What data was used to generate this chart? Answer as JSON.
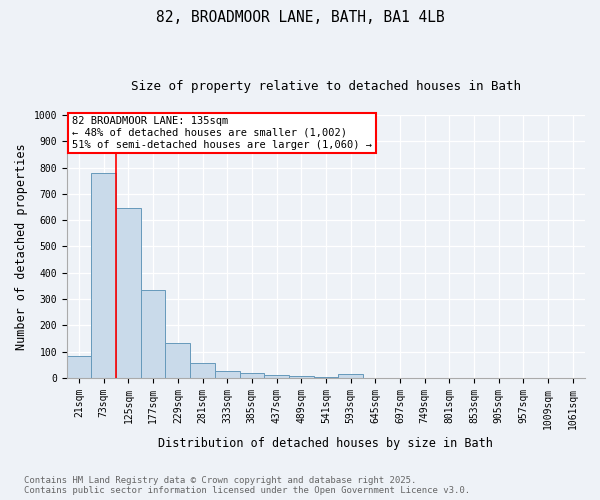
{
  "title1": "82, BROADMOOR LANE, BATH, BA1 4LB",
  "title2": "Size of property relative to detached houses in Bath",
  "xlabel": "Distribution of detached houses by size in Bath",
  "ylabel": "Number of detached properties",
  "categories": [
    "21sqm",
    "73sqm",
    "125sqm",
    "177sqm",
    "229sqm",
    "281sqm",
    "333sqm",
    "385sqm",
    "437sqm",
    "489sqm",
    "541sqm",
    "593sqm",
    "645sqm",
    "697sqm",
    "749sqm",
    "801sqm",
    "853sqm",
    "905sqm",
    "957sqm",
    "1009sqm",
    "1061sqm"
  ],
  "values": [
    83,
    780,
    648,
    335,
    133,
    58,
    25,
    20,
    12,
    8,
    5,
    13,
    0,
    0,
    0,
    0,
    0,
    0,
    0,
    0,
    0
  ],
  "bar_color": "#c9daea",
  "bar_edge_color": "#6699bb",
  "red_line_x": 2.0,
  "annotation_line1": "82 BROADMOOR LANE: 135sqm",
  "annotation_line2": "← 48% of detached houses are smaller (1,002)",
  "annotation_line3": "51% of semi-detached houses are larger (1,060) →",
  "ylim": [
    0,
    1000
  ],
  "yticks": [
    0,
    100,
    200,
    300,
    400,
    500,
    600,
    700,
    800,
    900,
    1000
  ],
  "footnote1": "Contains HM Land Registry data © Crown copyright and database right 2025.",
  "footnote2": "Contains public sector information licensed under the Open Government Licence v3.0.",
  "bg_color": "#eef2f7",
  "plot_bg_color": "#eef2f7",
  "grid_color": "#ffffff",
  "title_fontsize": 10.5,
  "subtitle_fontsize": 9,
  "axis_label_fontsize": 8.5,
  "tick_fontsize": 7,
  "annot_fontsize": 7.5,
  "footnote_fontsize": 6.5
}
